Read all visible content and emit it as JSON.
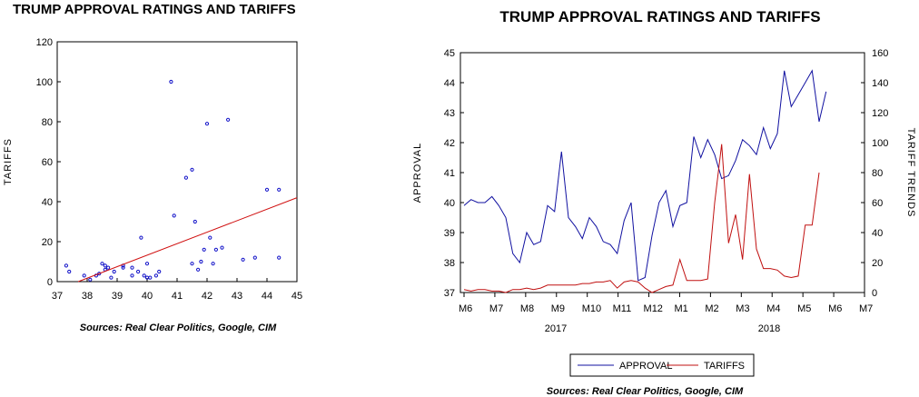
{
  "chart_data": [
    {
      "type": "scatter",
      "title": "TRUMP APPROVAL RATINGS AND TARIFFS",
      "xlabel": "",
      "ylabel": "TARIFFS",
      "xlim": [
        37,
        45
      ],
      "ylim": [
        0,
        120
      ],
      "xticks": [
        "37",
        "38",
        "39",
        "40",
        "41",
        "42",
        "43",
        "44",
        "45"
      ],
      "yticks": [
        "0",
        "20",
        "40",
        "60",
        "80",
        "100",
        "120"
      ],
      "source": "Sources:  Real Clear Politics, Google, CIM",
      "points": [
        [
          37.3,
          8
        ],
        [
          37.4,
          5
        ],
        [
          37.9,
          3
        ],
        [
          38.1,
          1
        ],
        [
          38.3,
          3
        ],
        [
          38.4,
          4
        ],
        [
          38.5,
          9
        ],
        [
          38.6,
          6
        ],
        [
          38.6,
          8
        ],
        [
          38.7,
          7
        ],
        [
          38.8,
          2
        ],
        [
          38.9,
          5
        ],
        [
          39.2,
          7
        ],
        [
          39.2,
          8
        ],
        [
          39.5,
          7
        ],
        [
          39.5,
          3
        ],
        [
          39.7,
          5
        ],
        [
          39.8,
          22
        ],
        [
          39.9,
          3
        ],
        [
          40.0,
          9
        ],
        [
          40.0,
          2
        ],
        [
          40.1,
          2
        ],
        [
          40.3,
          3
        ],
        [
          40.4,
          5
        ],
        [
          40.8,
          100
        ],
        [
          40.9,
          33
        ],
        [
          41.3,
          52
        ],
        [
          41.5,
          56
        ],
        [
          41.5,
          9
        ],
        [
          41.6,
          30
        ],
        [
          41.7,
          6
        ],
        [
          41.8,
          10
        ],
        [
          41.9,
          16
        ],
        [
          42.0,
          79
        ],
        [
          42.1,
          22
        ],
        [
          42.2,
          9
        ],
        [
          42.3,
          16
        ],
        [
          42.5,
          17
        ],
        [
          42.7,
          81
        ],
        [
          43.2,
          11
        ],
        [
          43.6,
          12
        ],
        [
          44.0,
          46
        ],
        [
          44.4,
          46
        ],
        [
          44.4,
          12
        ]
      ],
      "regression": {
        "x": [
          37.7,
          45
        ],
        "y": [
          0,
          42
        ]
      },
      "colors": {
        "points": "#1010c8",
        "regression": "#d01010"
      }
    },
    {
      "type": "line",
      "title": "TRUMP APPROVAL RATINGS AND TARIFFS",
      "ylabel_left": "APPROVAL",
      "ylabel_right": "TARIFF TRENDS",
      "ylim_left": [
        37,
        45
      ],
      "ylim_right": [
        0,
        160
      ],
      "yticks_left": [
        "37",
        "38",
        "39",
        "40",
        "41",
        "42",
        "43",
        "44",
        "45"
      ],
      "yticks_right": [
        "0",
        "20",
        "40",
        "60",
        "80",
        "100",
        "120",
        "140",
        "160"
      ],
      "x_tick_labels": [
        "M6",
        "M7",
        "M8",
        "M9",
        "M10",
        "M11",
        "M12",
        "M1",
        "M2",
        "M3",
        "M4",
        "M5",
        "M6",
        "M7"
      ],
      "year_labels": [
        "2017",
        "2018"
      ],
      "source": "Sources:  Real Clear Politics, Google, CIM",
      "legend_position": "bottom",
      "n_periods": 58,
      "series": [
        {
          "name": "APPROVAL",
          "axis": "left",
          "color": "#1010a0",
          "values": [
            39.9,
            40.1,
            40.0,
            40.0,
            40.2,
            39.9,
            39.5,
            38.3,
            38.0,
            39.0,
            38.6,
            38.7,
            39.9,
            39.7,
            41.7,
            39.5,
            39.2,
            38.8,
            39.5,
            39.2,
            38.7,
            38.6,
            38.3,
            39.4,
            40.0,
            37.4,
            37.5,
            38.9,
            40.0,
            40.4,
            39.2,
            39.9,
            40.0,
            42.2,
            41.5,
            42.1,
            41.6,
            40.8,
            40.9,
            41.4,
            42.1,
            41.9,
            41.6,
            42.5,
            41.8,
            42.3,
            44.4,
            43.2,
            43.6,
            44.0,
            44.4,
            42.7,
            43.7
          ]
        },
        {
          "name": "TARIFFS",
          "axis": "right",
          "color": "#c01010",
          "values": [
            2,
            1,
            2,
            2,
            1,
            1,
            0,
            2,
            2,
            3,
            2,
            3,
            5,
            5,
            5,
            5,
            5,
            6,
            6,
            7,
            7,
            8,
            3,
            7,
            8,
            7,
            3,
            0,
            2,
            4,
            5,
            22,
            8,
            8,
            8,
            9,
            60,
            99,
            33,
            52,
            22,
            79,
            29,
            16,
            16,
            15,
            11,
            10,
            11,
            45,
            45,
            80
          ]
        }
      ]
    }
  ]
}
